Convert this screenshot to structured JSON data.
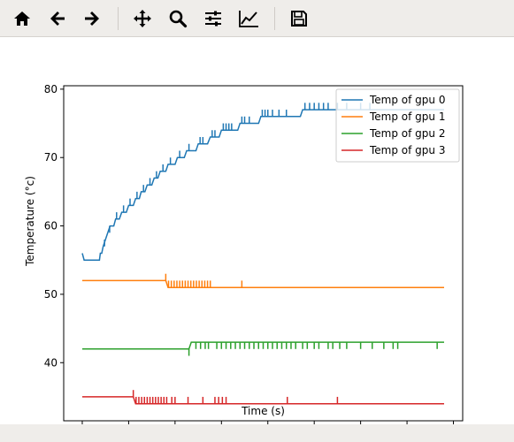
{
  "toolbar": {
    "buttons": [
      {
        "name": "home-button",
        "icon": "home-icon"
      },
      {
        "name": "back-button",
        "icon": "arrow-left-icon"
      },
      {
        "name": "forward-button",
        "icon": "arrow-right-icon"
      },
      {
        "name": "pan-button",
        "icon": "move-icon"
      },
      {
        "name": "zoom-button",
        "icon": "magnifier-icon"
      },
      {
        "name": "configure-subplots-button",
        "icon": "sliders-icon"
      },
      {
        "name": "edit-axis-button",
        "icon": "line-chart-icon"
      },
      {
        "name": "save-button",
        "icon": "floppy-disk-icon"
      }
    ]
  },
  "chart_data": {
    "type": "line",
    "title": "",
    "xlabel": "Time (s)",
    "ylabel": "Temperature (°c)",
    "xlim": [
      -4,
      82
    ],
    "ylim": [
      31.5,
      80.5
    ],
    "xticks": [
      0,
      10,
      20,
      30,
      40,
      50,
      60,
      70,
      80
    ],
    "yticks": [
      40,
      50,
      60,
      70,
      80
    ],
    "legend_position": "top-right",
    "series": [
      {
        "name": "Temp of gpu 0",
        "color": "#1f77b4",
        "points": [
          [
            0,
            56
          ],
          [
            0.4,
            55
          ],
          [
            1,
            55
          ],
          [
            2,
            55
          ],
          [
            3,
            55
          ],
          [
            3.7,
            55
          ],
          [
            3.9,
            56
          ],
          [
            4.2,
            56
          ],
          [
            4.5,
            57
          ],
          [
            5,
            58
          ],
          [
            5.5,
            59
          ],
          [
            6,
            60
          ],
          [
            6.8,
            60
          ],
          [
            7.2,
            61
          ],
          [
            8,
            61
          ],
          [
            8.5,
            62
          ],
          [
            9.5,
            62
          ],
          [
            10,
            63
          ],
          [
            11,
            63
          ],
          [
            11.5,
            64
          ],
          [
            12.3,
            64
          ],
          [
            12.7,
            65
          ],
          [
            13.5,
            65
          ],
          [
            14,
            66
          ],
          [
            15,
            66
          ],
          [
            15.5,
            67
          ],
          [
            16.3,
            67
          ],
          [
            16.8,
            68
          ],
          [
            18,
            68
          ],
          [
            18.5,
            69
          ],
          [
            20,
            69
          ],
          [
            20.5,
            70
          ],
          [
            22,
            70
          ],
          [
            22.5,
            71
          ],
          [
            24.5,
            71
          ],
          [
            25,
            72
          ],
          [
            27,
            72
          ],
          [
            27.6,
            73
          ],
          [
            29.5,
            73
          ],
          [
            30,
            74
          ],
          [
            33.5,
            74
          ],
          [
            34,
            75
          ],
          [
            38,
            75
          ],
          [
            38.5,
            76
          ],
          [
            47,
            76
          ],
          [
            47.5,
            77
          ],
          [
            78,
            77
          ]
        ],
        "spikes": [
          [
            4.8,
            1
          ],
          [
            5.9,
            1
          ],
          [
            7.4,
            1
          ],
          [
            8.9,
            1
          ],
          [
            10.3,
            1
          ],
          [
            11.8,
            1
          ],
          [
            13.2,
            1
          ],
          [
            14.6,
            1
          ],
          [
            16,
            1
          ],
          [
            17.4,
            1
          ],
          [
            19,
            1
          ],
          [
            21,
            1
          ],
          [
            23,
            1
          ],
          [
            25.4,
            1
          ],
          [
            26,
            1
          ],
          [
            28,
            1
          ],
          [
            28.6,
            1
          ],
          [
            30.4,
            1
          ],
          [
            31,
            1
          ],
          [
            31.6,
            1
          ],
          [
            32.2,
            1
          ],
          [
            34.4,
            1
          ],
          [
            35,
            1
          ],
          [
            36,
            1
          ],
          [
            38.8,
            1
          ],
          [
            39.4,
            1
          ],
          [
            40,
            1
          ],
          [
            41,
            1
          ],
          [
            42.4,
            1
          ],
          [
            44,
            1
          ],
          [
            48,
            1
          ],
          [
            49,
            1
          ],
          [
            50,
            1
          ],
          [
            51,
            1
          ],
          [
            52,
            1
          ],
          [
            53,
            1
          ],
          [
            55,
            1
          ],
          [
            57,
            1
          ],
          [
            60,
            1
          ],
          [
            62,
            1
          ]
        ]
      },
      {
        "name": "Temp of gpu 1",
        "color": "#ff7f0e",
        "points": [
          [
            0,
            52
          ],
          [
            18,
            52
          ],
          [
            18.5,
            51
          ],
          [
            78,
            51
          ]
        ],
        "spikes": [
          [
            18,
            1
          ],
          [
            18.6,
            1
          ],
          [
            19.2,
            1
          ],
          [
            19.8,
            1
          ],
          [
            20.4,
            1
          ],
          [
            21,
            1
          ],
          [
            21.6,
            1
          ],
          [
            22.2,
            1
          ],
          [
            22.8,
            1
          ],
          [
            23.4,
            1
          ],
          [
            24,
            1
          ],
          [
            24.6,
            1
          ],
          [
            25.2,
            1
          ],
          [
            25.8,
            1
          ],
          [
            26.4,
            1
          ],
          [
            27,
            1
          ],
          [
            27.6,
            1
          ],
          [
            34.4,
            1
          ]
        ]
      },
      {
        "name": "Temp of gpu 2",
        "color": "#2ca02c",
        "points": [
          [
            0,
            42
          ],
          [
            23,
            42
          ],
          [
            23.5,
            43
          ],
          [
            78,
            43
          ]
        ],
        "spikes": [
          [
            23,
            -1
          ],
          [
            24.5,
            -1
          ],
          [
            25.5,
            -1
          ],
          [
            26.5,
            -1
          ],
          [
            27.2,
            -1
          ],
          [
            29,
            -1
          ],
          [
            30,
            -1
          ],
          [
            31,
            -1
          ],
          [
            32,
            -1
          ],
          [
            33,
            -1
          ],
          [
            34,
            -1
          ],
          [
            35,
            -1
          ],
          [
            36,
            -1
          ],
          [
            37,
            -1
          ],
          [
            38,
            -1
          ],
          [
            39,
            -1
          ],
          [
            40,
            -1
          ],
          [
            41,
            -1
          ],
          [
            42,
            -1
          ],
          [
            43,
            -1
          ],
          [
            44,
            -1
          ],
          [
            45,
            -1
          ],
          [
            46,
            -1
          ],
          [
            47.5,
            -1
          ],
          [
            48.5,
            -1
          ],
          [
            50,
            -1
          ],
          [
            51,
            -1
          ],
          [
            53,
            -1
          ],
          [
            54,
            -1
          ],
          [
            55.5,
            -1
          ],
          [
            57,
            -1
          ],
          [
            60,
            -1
          ],
          [
            62.5,
            -1
          ],
          [
            65,
            -1
          ],
          [
            67,
            -1
          ],
          [
            68,
            -1
          ],
          [
            76.5,
            -1
          ]
        ]
      },
      {
        "name": "Temp of gpu 3",
        "color": "#d62728",
        "points": [
          [
            0,
            35
          ],
          [
            11,
            35
          ],
          [
            11.5,
            34
          ],
          [
            78,
            34
          ]
        ],
        "spikes": [
          [
            11,
            1
          ],
          [
            11.6,
            1
          ],
          [
            12.2,
            1
          ],
          [
            12.8,
            1
          ],
          [
            13.4,
            1
          ],
          [
            14,
            1
          ],
          [
            14.6,
            1
          ],
          [
            15.2,
            1
          ],
          [
            15.8,
            1
          ],
          [
            16.4,
            1
          ],
          [
            17,
            1
          ],
          [
            17.6,
            1
          ],
          [
            18.2,
            1
          ],
          [
            19.3,
            1
          ],
          [
            20,
            1
          ],
          [
            22.8,
            1
          ],
          [
            26,
            1
          ],
          [
            28.6,
            1
          ],
          [
            29.4,
            1
          ],
          [
            30.2,
            1
          ],
          [
            31,
            1
          ],
          [
            44.2,
            1
          ],
          [
            55,
            1
          ]
        ]
      }
    ]
  }
}
